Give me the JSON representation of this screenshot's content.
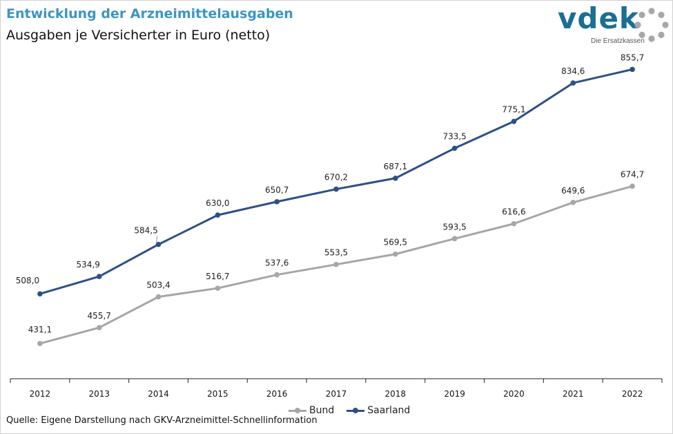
{
  "header": {
    "title": "Entwicklung der Arzneimittelausgaben",
    "subtitle": "Ausgaben je Versicherter in Euro (netto)"
  },
  "logo": {
    "wordmark": "vdek",
    "tagline": "Die Ersatzkassen",
    "icon": "dotted-ring-icon"
  },
  "footer": {
    "source": "Quelle: Eigene Darstellung nach GKV-Arzneimittel-Schnellinformation"
  },
  "colors": {
    "title": "#3b95c2",
    "bund": "#a6a6a6",
    "saarland": "#2d4f88",
    "logo": "#1a6f93"
  },
  "chart_data": {
    "type": "line",
    "x": [
      "2012",
      "2013",
      "2014",
      "2015",
      "2016",
      "2017",
      "2018",
      "2019",
      "2020",
      "2021",
      "2022"
    ],
    "series": [
      {
        "name": "Bund",
        "color": "#a6a6a6",
        "values": [
          431.1,
          455.7,
          503.4,
          516.7,
          537.6,
          553.5,
          569.5,
          593.5,
          616.6,
          649.6,
          674.7
        ],
        "labels": [
          "431,1",
          "455,7",
          "503,4",
          "516,7",
          "537,6",
          "553,5",
          "569,5",
          "593,5",
          "616,6",
          "649,6",
          "674,7"
        ]
      },
      {
        "name": "Saarland",
        "color": "#2d4f88",
        "values": [
          508.0,
          534.9,
          584.5,
          630.0,
          650.7,
          670.2,
          687.1,
          733.5,
          775.1,
          834.6,
          855.7
        ],
        "labels": [
          "508,0",
          "534,9",
          "584,5",
          "630,0",
          "650,7",
          "670,2",
          "687,1",
          "733,5",
          "775,1",
          "834,6",
          "855,7"
        ]
      }
    ],
    "ylim": [
      300,
      900
    ],
    "y_axis_visible": false,
    "grid": false,
    "legend": "bottom-center",
    "xlabel": "",
    "ylabel": ""
  }
}
